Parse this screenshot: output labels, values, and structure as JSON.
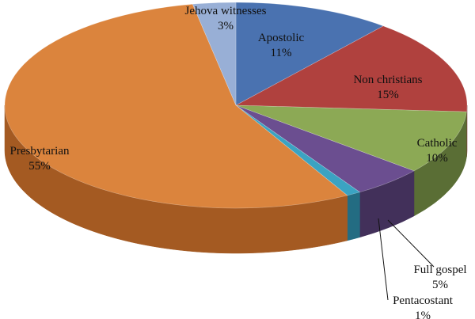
{
  "chart_data": {
    "type": "pie",
    "style": "3d",
    "legend": "none",
    "slices": [
      {
        "name": "Apostolic",
        "value": 11,
        "label": "11%",
        "color": "#4A72B0",
        "side": "#2F4A78"
      },
      {
        "name": "Non christians",
        "value": 15,
        "label": "15%",
        "color": "#B0413E",
        "side": "#74292A"
      },
      {
        "name": "Catholic",
        "value": 10,
        "label": "10%",
        "color": "#8CA955",
        "side": "#5A6E35"
      },
      {
        "name": "Full gospel",
        "value": 5,
        "label": "5%",
        "color": "#6B4E90",
        "side": "#42305A"
      },
      {
        "name": "Pentacostant",
        "value": 1,
        "label": "1%",
        "color": "#3BA3C2",
        "side": "#236C82"
      },
      {
        "name": "Presbytarian",
        "value": 55,
        "label": "55%",
        "color": "#DB843D",
        "side": "#A45A22"
      },
      {
        "name": "Jehova witnesses",
        "value": 3,
        "label": "3%",
        "color": "#98AFD6",
        "side": "#6C82A8"
      }
    ]
  }
}
